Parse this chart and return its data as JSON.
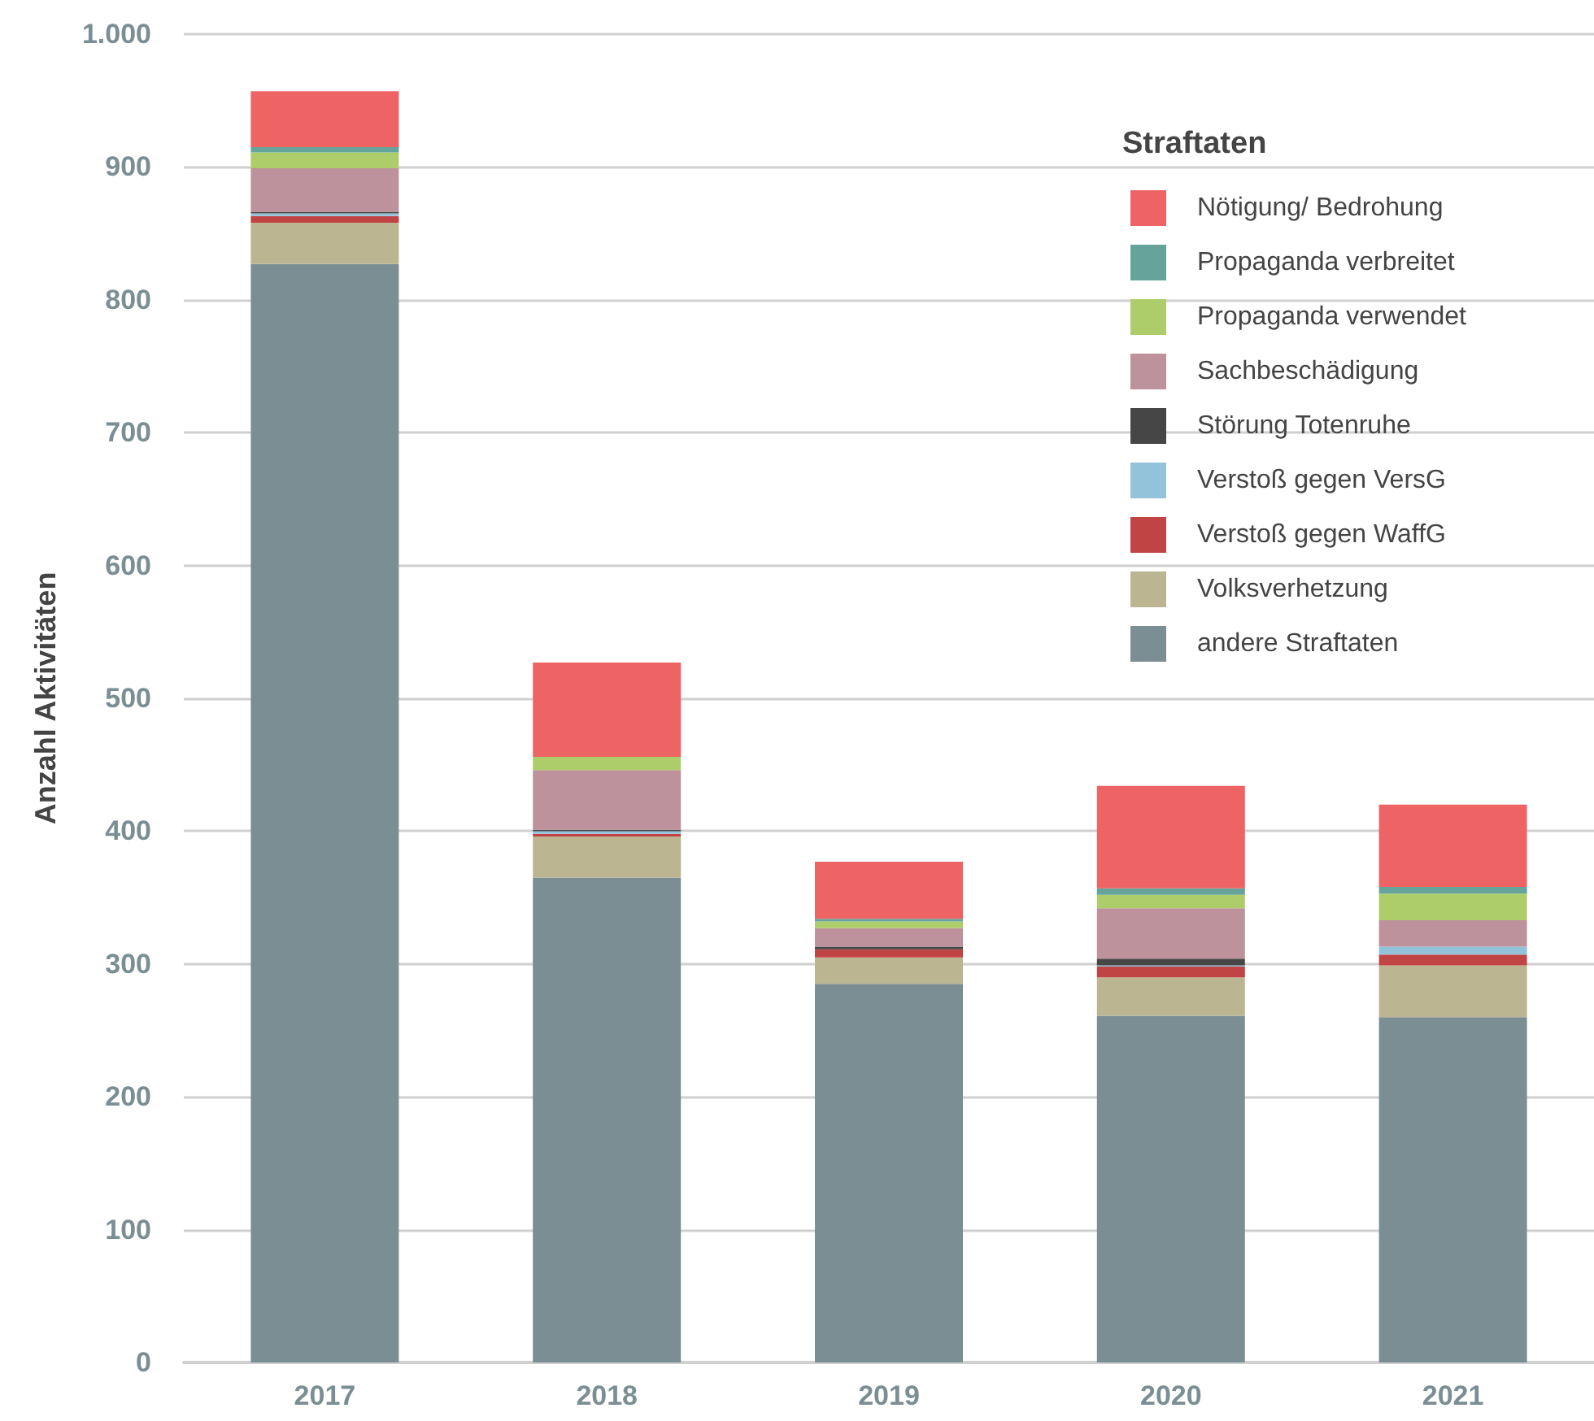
{
  "chart_data": {
    "type": "bar",
    "stacked": true,
    "ylabel": "Anzahl Aktivitäten",
    "legend_title": "Straftaten",
    "legend": "top right",
    "grid": "y",
    "categories": [
      "2017",
      "2018",
      "2019",
      "2020",
      "2021"
    ],
    "ylim": [
      0,
      1000
    ],
    "yticks": [
      0,
      100,
      200,
      300,
      400,
      500,
      600,
      700,
      800,
      900,
      {
        "value": 1000,
        "label": "1.000"
      }
    ],
    "series": [
      {
        "name": "andere Straftaten",
        "color": "#7b8e94",
        "values": [
          827,
          365,
          285,
          261,
          260
        ]
      },
      {
        "name": "Volksverhetzung",
        "color": "#bcb591",
        "values": [
          31,
          31,
          20,
          29,
          39
        ]
      },
      {
        "name": "Verstoß gegen WaffG",
        "color": "#c04444",
        "values": [
          5,
          2,
          6,
          8,
          8
        ]
      },
      {
        "name": "Verstoß gegen VersG",
        "color": "#93c3da",
        "values": [
          2,
          2,
          0,
          1,
          6
        ]
      },
      {
        "name": "Störung Totenruhe",
        "color": "#464646",
        "values": [
          1,
          1,
          2,
          5,
          0
        ]
      },
      {
        "name": "Sachbeschädigung",
        "color": "#bd929c",
        "values": [
          33,
          45,
          14,
          38,
          20
        ]
      },
      {
        "name": "Propaganda verwendet",
        "color": "#adcd6a",
        "values": [
          12,
          10,
          5,
          10,
          20
        ]
      },
      {
        "name": "Propaganda verbreitet",
        "color": "#66a39b",
        "values": [
          4,
          0,
          2,
          5,
          5
        ]
      },
      {
        "name": "Nötigung/ Bedrohung",
        "color": "#ee6363",
        "values": [
          42,
          71,
          43,
          77,
          62
        ]
      }
    ]
  }
}
